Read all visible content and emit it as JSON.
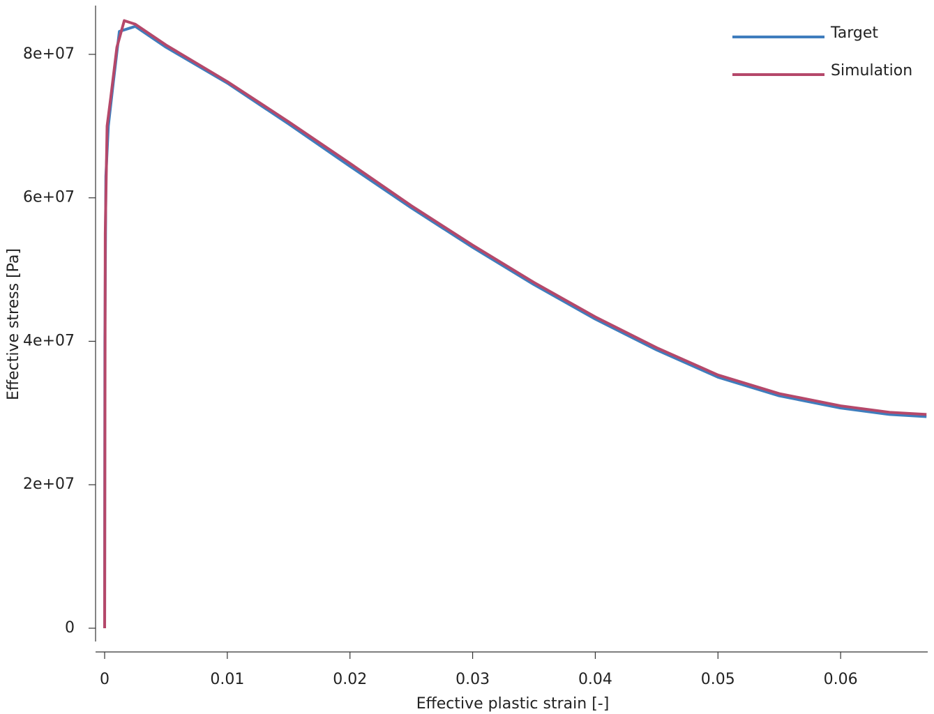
{
  "chart_data": {
    "type": "line",
    "x_label": "Effective plastic strain [-]",
    "y_label": "Effective stress [Pa]",
    "xlim": [
      -0.00074,
      0.0671
    ],
    "ylim": [
      -1850000,
      86800000
    ],
    "xticks": [
      0,
      0.01,
      0.02,
      0.03,
      0.04,
      0.05,
      0.06
    ],
    "yticks": [
      0,
      {
        "value": 20000000,
        "label": "2e+07"
      },
      {
        "value": 40000000,
        "label": "4e+07"
      },
      {
        "value": 60000000,
        "label": "6e+07"
      },
      {
        "value": 80000000,
        "label": "8e+07"
      }
    ],
    "legend": "top-right",
    "series": [
      {
        "name": "Target",
        "color": "#3f7dbd",
        "x": [
          0,
          2e-05,
          0.0001,
          0.0003,
          0.0007,
          0.0012,
          0.0025,
          0.005,
          0.01,
          0.015,
          0.02,
          0.025,
          0.03,
          0.035,
          0.04,
          0.045,
          0.05,
          0.055,
          0.06,
          0.064,
          0.067
        ],
        "values": [
          0,
          40000000,
          63000000,
          70000000,
          76000000,
          83200000,
          83900000,
          81000000,
          76000000,
          70300000,
          64400000,
          58600000,
          53100000,
          47900000,
          43100000,
          38800000,
          35000000,
          32400000,
          30700000,
          29800000,
          29500000
        ]
      },
      {
        "name": "Simulation",
        "color": "#b5486a",
        "x": [
          0,
          5e-05,
          0.0002,
          0.0005,
          0.001,
          0.0016,
          0.0025,
          0.005,
          0.01,
          0.015,
          0.02,
          0.025,
          0.03,
          0.035,
          0.04,
          0.045,
          0.05,
          0.055,
          0.06,
          0.064,
          0.067
        ],
        "values": [
          0,
          55000000,
          70000000,
          74000000,
          81000000,
          84700000,
          84200000,
          81300000,
          76200000,
          70600000,
          64800000,
          58900000,
          53400000,
          48200000,
          43400000,
          39100000,
          35300000,
          32700000,
          31000000,
          30100000,
          29800000
        ]
      }
    ]
  }
}
